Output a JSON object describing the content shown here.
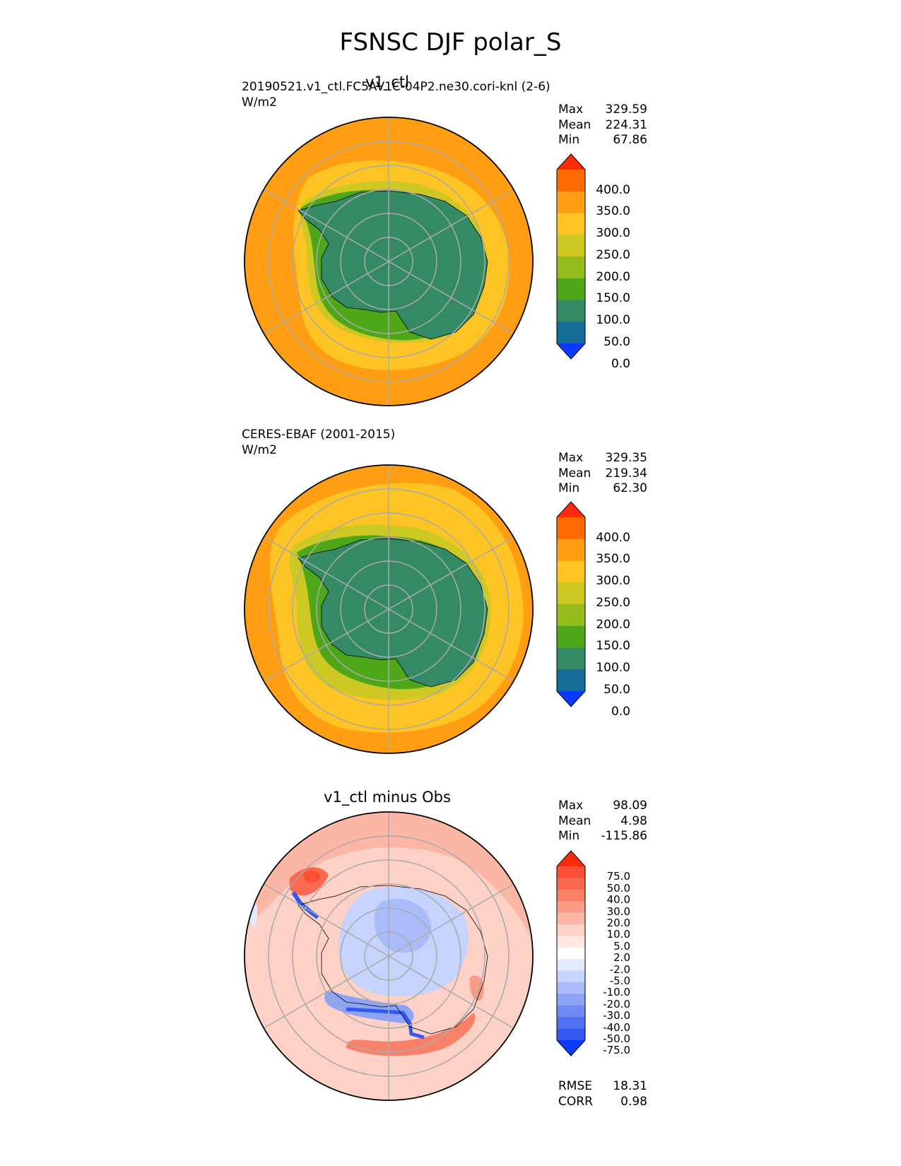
{
  "figure": {
    "title": "FSNSC DJF polar_S"
  },
  "panels": [
    {
      "id": "test",
      "title": "v1_ctl",
      "subtitle_line1": "20190521.v1_ctl.FC5AV1C-04P2.ne30.cori-knl (2-6)",
      "subtitle_line2": "W/m2",
      "stats": [
        {
          "label": "Max",
          "value": "329.59"
        },
        {
          "label": "Mean",
          "value": "224.31"
        },
        {
          "label": "Min",
          "value": "67.86"
        }
      ],
      "colorbar": {
        "ticks": [
          "400.0",
          "350.0",
          "300.0",
          "250.0",
          "200.0",
          "150.0",
          "100.0",
          "50.0",
          "0.0"
        ],
        "colors": [
          "#ff2a0a",
          "#ff6a00",
          "#ff9e12",
          "#fdc424",
          "#cdc823",
          "#93bb1c",
          "#4ea619",
          "#358a66",
          "#136d97",
          "#0a3aff"
        ]
      }
    },
    {
      "id": "reference",
      "title": "",
      "subtitle_line1": "CERES-EBAF (2001-2015)",
      "subtitle_line2": "W/m2",
      "stats": [
        {
          "label": "Max",
          "value": "329.35"
        },
        {
          "label": "Mean",
          "value": "219.34"
        },
        {
          "label": "Min",
          "value": "62.30"
        }
      ],
      "colorbar": {
        "ticks": [
          "400.0",
          "350.0",
          "300.0",
          "250.0",
          "200.0",
          "150.0",
          "100.0",
          "50.0",
          "0.0"
        ],
        "colors": [
          "#ff2a0a",
          "#ff6a00",
          "#ff9e12",
          "#fdc424",
          "#cdc823",
          "#93bb1c",
          "#4ea619",
          "#358a66",
          "#136d97",
          "#0a3aff"
        ]
      }
    },
    {
      "id": "difference",
      "title": "v1_ctl minus Obs",
      "stats": [
        {
          "label": "Max",
          "value": "98.09"
        },
        {
          "label": "Mean",
          "value": "4.98"
        },
        {
          "label": "Min",
          "value": "-115.86"
        }
      ],
      "metrics": [
        {
          "label": "RMSE",
          "value": "18.31"
        },
        {
          "label": "CORR",
          "value": "0.98"
        }
      ],
      "colorbar": {
        "ticks": [
          "75.0",
          "50.0",
          "40.0",
          "30.0",
          "20.0",
          "10.0",
          "5.0",
          "2.0",
          "-2.0",
          "-5.0",
          "-10.0",
          "-20.0",
          "-30.0",
          "-40.0",
          "-50.0",
          "-75.0"
        ],
        "colors": [
          "#ff2a0a",
          "#fb4f34",
          "#f96a50",
          "#f98168",
          "#fa9b86",
          "#fcb6a6",
          "#fdd1c5",
          "#feeae3",
          "#ffffff",
          "#e3e9ff",
          "#c6d3fc",
          "#a9bcf9",
          "#8ca3f6",
          "#6f8af3",
          "#5171f1",
          "#3358f0",
          "#0a3aff"
        ]
      }
    }
  ],
  "chart_data": [
    {
      "type": "heatmap",
      "projection": "south polar stereographic",
      "title": "v1_ctl",
      "variable": "FSNSC",
      "season": "DJF",
      "units": "W/m2",
      "levels": [
        0,
        50,
        100,
        150,
        200,
        250,
        300,
        350,
        400
      ],
      "extend": "both",
      "stats": {
        "max": 329.59,
        "mean": 224.31,
        "min": 67.86
      }
    },
    {
      "type": "heatmap",
      "projection": "south polar stereographic",
      "title": "CERES-EBAF (2001-2015)",
      "variable": "FSNSC",
      "season": "DJF",
      "units": "W/m2",
      "levels": [
        0,
        50,
        100,
        150,
        200,
        250,
        300,
        350,
        400
      ],
      "extend": "both",
      "stats": {
        "max": 329.35,
        "mean": 219.34,
        "min": 62.3
      }
    },
    {
      "type": "heatmap",
      "projection": "south polar stereographic",
      "title": "v1_ctl minus Obs",
      "variable": "FSNSC",
      "season": "DJF",
      "levels": [
        -75,
        -50,
        -40,
        -30,
        -20,
        -10,
        -5,
        -2,
        2,
        5,
        10,
        20,
        30,
        40,
        50,
        75
      ],
      "extend": "both",
      "stats": {
        "max": 98.09,
        "mean": 4.98,
        "min": -115.86
      },
      "rmse": 18.31,
      "corr": 0.98
    }
  ]
}
